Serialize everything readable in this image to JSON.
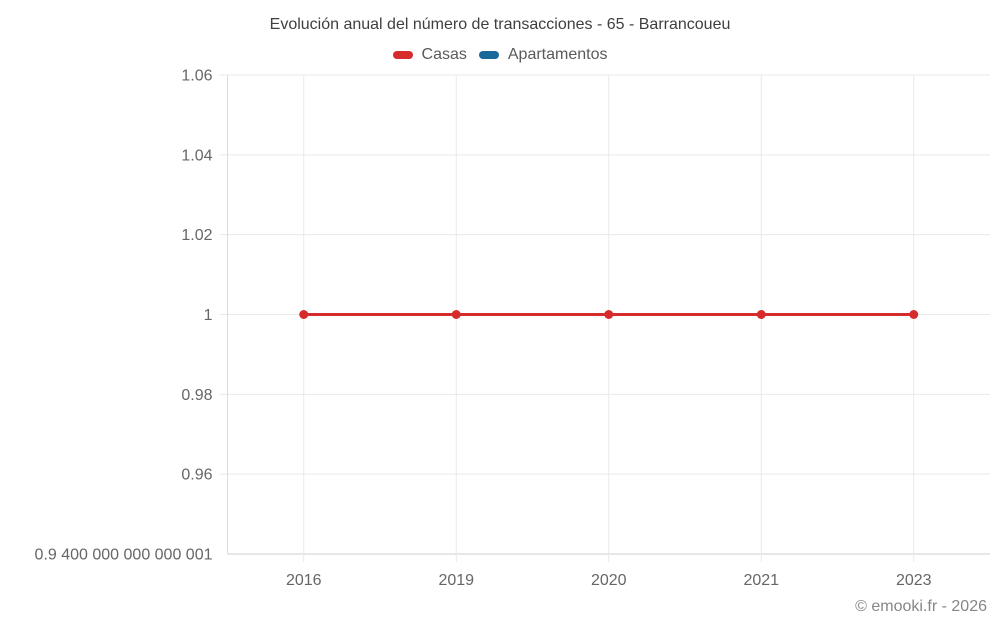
{
  "header": {
    "title": "Evolución anual del número de transacciones - 65 - Barrancoueu"
  },
  "footer": {
    "copyright": "© emooki.fr - 2026"
  },
  "chart_data": {
    "type": "line",
    "title": "Evolución anual del número de transacciones - 65 - Barrancoueu",
    "categories": [
      "2016",
      "2019",
      "2020",
      "2021",
      "2023"
    ],
    "series": [
      {
        "name": "Casas",
        "color": "#d62c2c",
        "values": [
          1,
          1,
          1,
          1,
          1
        ]
      },
      {
        "name": "Apartamentos",
        "color": "#17689b",
        "values": []
      }
    ],
    "xlabel": "",
    "ylabel": "",
    "ylim": [
      0.94,
      1.06
    ],
    "yticks": [
      {
        "value": 1.06,
        "label": "1.06"
      },
      {
        "value": 1.04,
        "label": "1.04"
      },
      {
        "value": 1.02,
        "label": "1.02"
      },
      {
        "value": 1.0,
        "label": "1"
      },
      {
        "value": 0.98,
        "label": "0.98"
      },
      {
        "value": 0.96,
        "label": "0.96"
      },
      {
        "value": 0.94,
        "label": "0.9 400 000 000 000 001"
      }
    ],
    "grid": true,
    "legend_position": "top",
    "line_width": 3,
    "point_radius": 4.5,
    "colors": {
      "gridline": "#e9e9e9",
      "axis_left": "#dcdcdc",
      "axis_bottom": "#cfcfcf",
      "tick_text": "#666666"
    }
  }
}
